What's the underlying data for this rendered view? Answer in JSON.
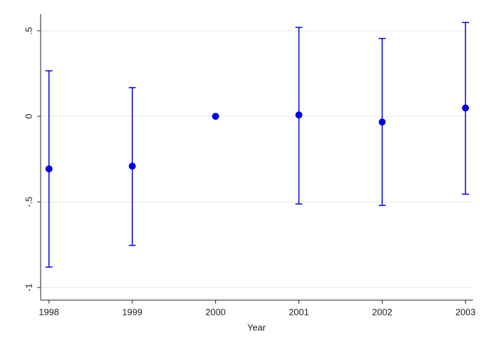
{
  "chart_data": {
    "type": "errorbar",
    "x_label": "Year",
    "x": [
      1998,
      1999,
      2000,
      2001,
      2002,
      2003
    ],
    "series": [
      {
        "color": "#0000e6",
        "values": [
          -0.307,
          -0.291,
          0,
          0.008,
          -0.033,
          0.049
        ],
        "lower": [
          -0.881,
          -0.754,
          null,
          -0.512,
          -0.52,
          -0.455
        ],
        "upper": [
          0.266,
          0.168,
          null,
          0.52,
          0.455,
          0.549
        ]
      }
    ],
    "xlim": [
      1997.9,
      2003.09
    ],
    "xticks": [
      1998,
      1999,
      2000,
      2001,
      2002,
      2003
    ],
    "ylim": [
      -1.074,
      0.598
    ],
    "yticks": [
      {
        "value": -1,
        "label": "-1"
      },
      {
        "value": -0.5,
        "label": "-.5"
      },
      0,
      {
        "value": 0.5,
        "label": ".5"
      }
    ],
    "grid": true
  }
}
